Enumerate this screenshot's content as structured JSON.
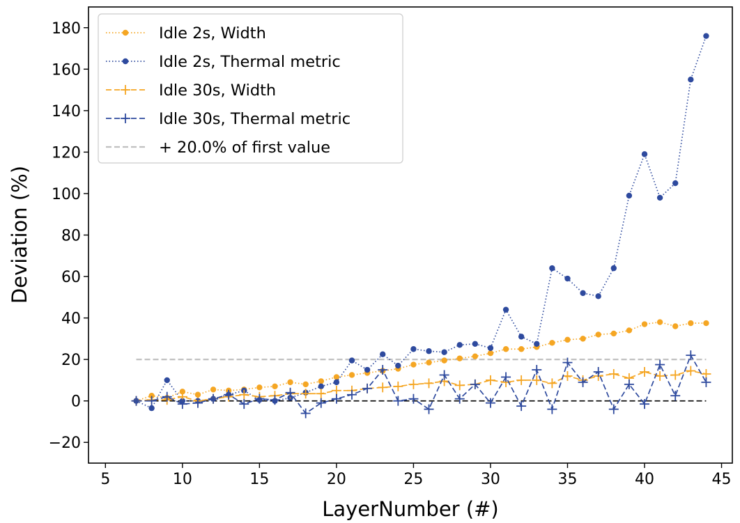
{
  "chart_data": {
    "type": "line",
    "title": "",
    "xlabel": "LayerNumber (#)",
    "ylabel": "Deviation (%)",
    "xlim": [
      3.9,
      45.7
    ],
    "ylim": [
      -30,
      190
    ],
    "xticks": [
      5,
      10,
      15,
      20,
      25,
      30,
      35,
      40,
      45
    ],
    "yticks": [
      -20,
      0,
      20,
      40,
      60,
      80,
      100,
      120,
      140,
      160,
      180
    ],
    "xtick_labels": [
      "5",
      "10",
      "15",
      "20",
      "25",
      "30",
      "35",
      "40",
      "45"
    ],
    "ytick_labels": [
      "−20",
      "0",
      "20",
      "40",
      "60",
      "80",
      "100",
      "120",
      "140",
      "160",
      "180"
    ],
    "grid": false,
    "legend_position": "top-left",
    "series": [
      {
        "name": "Idle 2s, Width",
        "color": "#f5a623",
        "style": "dotted",
        "marker": "dot",
        "x": [
          7,
          8,
          9,
          10,
          11,
          12,
          13,
          14,
          15,
          16,
          17,
          18,
          19,
          20,
          21,
          22,
          23,
          24,
          25,
          26,
          27,
          28,
          29,
          30,
          31,
          32,
          33,
          34,
          35,
          36,
          37,
          38,
          39,
          40,
          41,
          42,
          43,
          44
        ],
        "y": [
          0,
          2.5,
          1.5,
          4.5,
          3,
          5.5,
          5,
          5.5,
          6.5,
          7,
          9,
          8,
          9.5,
          11.5,
          12.5,
          13.5,
          14.5,
          15.5,
          17.5,
          18.5,
          19.5,
          20.5,
          21.5,
          23,
          25,
          25,
          26,
          28,
          29.5,
          30,
          32,
          32.5,
          34,
          37,
          38,
          36,
          37.5,
          37.5
        ]
      },
      {
        "name": "Idle 2s, Thermal metric",
        "color": "#2e4a9e",
        "style": "dotted",
        "marker": "dot",
        "x": [
          7,
          8,
          9,
          10,
          11,
          12,
          13,
          14,
          15,
          16,
          17,
          18,
          19,
          20,
          21,
          22,
          23,
          24,
          25,
          26,
          27,
          28,
          29,
          30,
          31,
          32,
          33,
          34,
          35,
          36,
          37,
          38,
          39,
          40,
          41,
          42,
          43,
          44
        ],
        "y": [
          0,
          -3.5,
          10,
          0,
          0,
          1,
          3,
          5,
          0.5,
          0,
          1.5,
          4,
          7,
          9,
          19.5,
          15,
          22.5,
          17,
          25,
          24,
          23.5,
          27,
          27.5,
          25.5,
          44,
          31,
          27.5,
          64,
          59,
          52,
          50.5,
          64,
          99,
          119,
          98,
          105,
          155,
          176
        ]
      },
      {
        "name": "Idle 30s, Width",
        "color": "#f5a623",
        "style": "dashed",
        "marker": "plus",
        "x": [
          7,
          8,
          9,
          10,
          11,
          12,
          13,
          14,
          15,
          16,
          17,
          18,
          19,
          20,
          21,
          22,
          23,
          24,
          25,
          26,
          27,
          28,
          29,
          30,
          31,
          32,
          33,
          34,
          35,
          36,
          37,
          38,
          39,
          40,
          41,
          42,
          43,
          44
        ],
        "y": [
          0,
          0.5,
          0.5,
          2,
          0,
          1,
          2,
          3,
          2,
          2.5,
          3.5,
          3.5,
          3.5,
          5,
          5,
          6,
          6.5,
          7,
          8,
          8.5,
          9.5,
          7.5,
          8,
          10,
          9,
          10,
          10,
          8.5,
          12,
          10,
          12,
          13,
          11,
          14,
          12,
          12.5,
          14.5,
          13
        ]
      },
      {
        "name": "Idle 30s, Thermal metric",
        "color": "#2e4a9e",
        "style": "dashed",
        "marker": "plus",
        "x": [
          7,
          8,
          9,
          10,
          11,
          12,
          13,
          14,
          15,
          16,
          17,
          18,
          19,
          20,
          21,
          22,
          23,
          24,
          25,
          26,
          27,
          28,
          29,
          30,
          31,
          32,
          33,
          34,
          35,
          36,
          37,
          38,
          39,
          40,
          41,
          42,
          43,
          44
        ],
        "y": [
          0,
          0,
          2,
          -1.5,
          -1,
          1,
          3,
          -1.5,
          1,
          0.5,
          4,
          -6,
          -1,
          1,
          3,
          6,
          15,
          0,
          1,
          -4,
          12.5,
          1,
          8,
          -1,
          11.5,
          -2.5,
          15,
          -4,
          18.5,
          9,
          14,
          -4,
          8,
          -1.5,
          17.5,
          2.5,
          22,
          9
        ]
      },
      {
        "name": "+ 20.0% of first value",
        "color": "#c0c0c0",
        "style": "dashed",
        "marker": "none",
        "x": [
          7,
          44
        ],
        "y": [
          20,
          20
        ]
      }
    ],
    "reference_lines": [
      {
        "color": "#000000",
        "style": "dashed",
        "x": [
          7,
          44
        ],
        "y": [
          0,
          0
        ]
      }
    ]
  }
}
